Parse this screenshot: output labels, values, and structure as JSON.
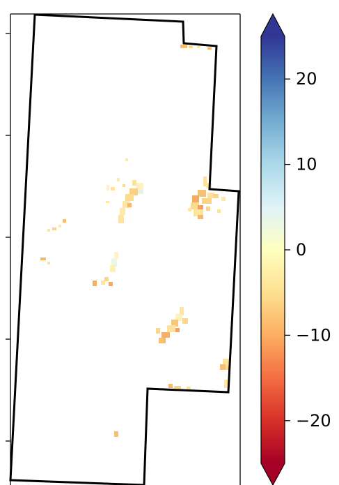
{
  "colorbar": {
    "colormap": "RdYlBu",
    "extend": "both",
    "range": [
      -25,
      25
    ],
    "ticks": [
      {
        "value": 20,
        "label": "20"
      },
      {
        "value": 10,
        "label": "10"
      },
      {
        "value": 0,
        "label": "0"
      },
      {
        "value": -10,
        "label": "−10"
      },
      {
        "value": -20,
        "label": "−20"
      }
    ],
    "stops": [
      "#a50026",
      "#d73027",
      "#f46d43",
      "#fdae61",
      "#fee090",
      "#ffffbf",
      "#e0f3f8",
      "#abd9e9",
      "#74add1",
      "#4575b4",
      "#313695"
    ]
  },
  "map": {
    "background": "#ffffff",
    "outline_color": "#000000",
    "y_ticks": 5
  }
}
